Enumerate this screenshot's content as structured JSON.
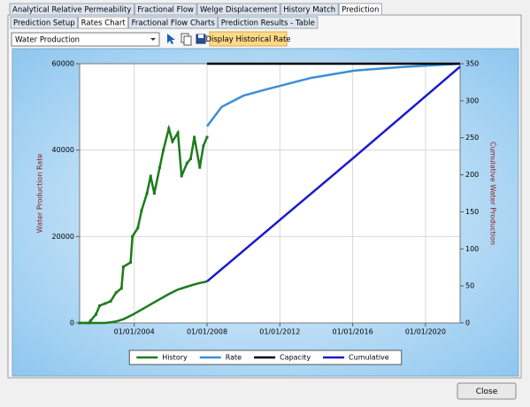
{
  "tabs": [
    {
      "label": "Analytical Relative Permeability",
      "selected": false
    },
    {
      "label": "Fractional Flow",
      "selected": false
    },
    {
      "label": "Welge Displacement",
      "selected": false
    },
    {
      "label": "History Match",
      "selected": false
    },
    {
      "label": "Prediction",
      "selected": true
    }
  ],
  "subtabs": [
    {
      "label": "Prediction Setup",
      "selected": false
    },
    {
      "label": "Rates Chart",
      "selected": true
    },
    {
      "label": "Fractional Flow Charts",
      "selected": false
    },
    {
      "label": "Prediction Results - Table",
      "selected": false
    }
  ],
  "toolbar": {
    "dropdown": "Water Production",
    "button": "Display Historical Rate"
  },
  "close_button": "Close",
  "chart_data": {
    "type": "line",
    "y_label": "Water Production Rate",
    "y2_label": "Cumulative Water Production",
    "xlim": [
      2001,
      2021.9
    ],
    "xticks": [
      {
        "value": 2004,
        "label": "01/01/2004"
      },
      {
        "value": 2008,
        "label": "01/01/2008"
      },
      {
        "value": 2012,
        "label": "01/01/2012"
      },
      {
        "value": 2016,
        "label": "01/01/2016"
      },
      {
        "value": 2020,
        "label": "01/01/2020"
      }
    ],
    "ylim": [
      0,
      60000
    ],
    "yticks": [
      0,
      20000,
      40000,
      60000
    ],
    "y2lim": [
      0,
      350
    ],
    "y2ticks": [
      0,
      50,
      100,
      150,
      200,
      250,
      300,
      350
    ],
    "grid": true,
    "legend": "bottom",
    "series": [
      {
        "name": "History",
        "color": "#1e7b1e",
        "x": [
          2001.0,
          2001.5,
          2001.6,
          2001.9,
          2002.1,
          2002.4,
          2002.7,
          2003.0,
          2003.3,
          2003.4,
          2003.8,
          2003.9,
          2004.2,
          2004.4,
          2004.7,
          2004.9,
          2005.1,
          2005.4,
          2005.6,
          2005.9,
          2006.1,
          2006.4,
          2006.6,
          2006.9,
          2007.1,
          2007.3,
          2007.6,
          2007.8,
          2008.0
        ],
        "values": [
          0,
          0,
          500,
          2000,
          4000,
          4500,
          5000,
          7000,
          8000,
          13000,
          14000,
          20000,
          22000,
          26000,
          30000,
          34000,
          30000,
          36000,
          40000,
          45000,
          42000,
          44000,
          34000,
          37000,
          38000,
          43000,
          36000,
          41000,
          43000
        ]
      },
      {
        "name": "Rate",
        "color": "#3a8fd8",
        "x": [
          2008.0,
          2008.8,
          2010.0,
          2011.2,
          2013.7,
          2016.1,
          2018.6,
          2021.9
        ],
        "values": [
          45500,
          50000,
          52600,
          54000,
          56700,
          58400,
          59200,
          60000
        ]
      },
      {
        "name": "Capacity",
        "color": "#000000",
        "x": [
          2008.0,
          2021.9
        ],
        "values": [
          60000,
          60000
        ]
      },
      {
        "name": "Cumulative",
        "color": "#1a1acd",
        "historical_color": "#1e7b1e",
        "axis": "y2",
        "x": [
          2001.0,
          2002.4,
          2002.7,
          2003.0,
          2003.4,
          2003.9,
          2004.4,
          2004.9,
          2005.4,
          2005.9,
          2006.4,
          2006.9,
          2007.3,
          2007.6,
          2008.0,
          2012.0,
          2016.0,
          2020.0,
          2021.9
        ],
        "values": [
          0,
          0,
          1,
          2,
          5,
          11,
          18,
          25,
          32,
          39,
          45,
          49,
          52,
          54,
          56,
          139,
          222,
          306,
          346
        ]
      }
    ]
  }
}
